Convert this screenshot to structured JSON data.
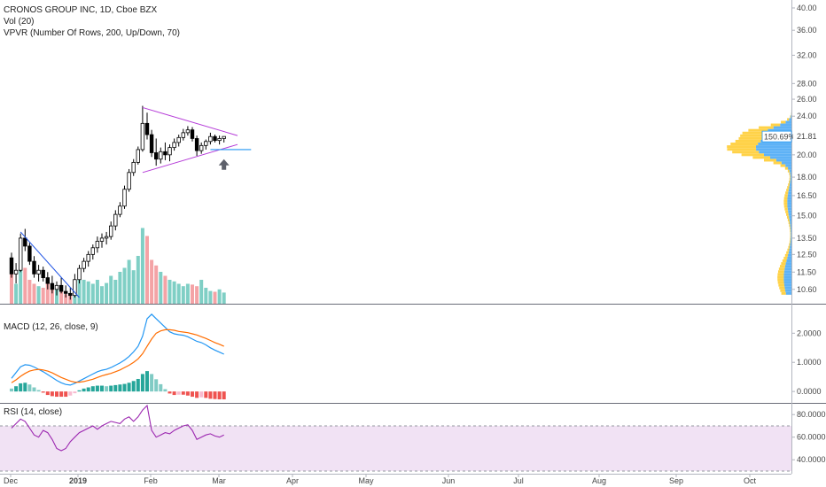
{
  "chart_data": [
    {
      "type": "candlestick",
      "title": "CRONOS GROUP INC, 1D, Cboe BZX",
      "indicators": [
        "Vol (20)",
        "VPVR (Number Of Rows, 200, Up/Down, 70)"
      ],
      "y_scale": "log",
      "ylim": [
        10.2,
        40.5
      ],
      "y_ticks": [
        "40.00",
        "36.00",
        "32.00",
        "28.00",
        "26.00",
        "24.00",
        "22.00",
        "20.00",
        "18.00",
        "16.50",
        "15.00",
        "13.50",
        "12.50",
        "11.50",
        "10.60"
      ],
      "x_ticks": [
        "Dec",
        "2019",
        "Feb",
        "Mar",
        "Apr",
        "May",
        "Jun",
        "Jul",
        "Aug",
        "Sep",
        "Oct"
      ],
      "candles": [
        {
          "o": 12.3,
          "h": 12.6,
          "l": 11.2,
          "c": 11.4
        },
        {
          "o": 11.4,
          "h": 12.0,
          "l": 10.9,
          "c": 11.6
        },
        {
          "o": 11.6,
          "h": 13.8,
          "l": 11.5,
          "c": 13.5
        },
        {
          "o": 13.5,
          "h": 14.1,
          "l": 12.7,
          "c": 13.0
        },
        {
          "o": 13.0,
          "h": 13.2,
          "l": 11.9,
          "c": 12.1
        },
        {
          "o": 12.1,
          "h": 12.4,
          "l": 11.2,
          "c": 11.4
        },
        {
          "o": 11.4,
          "h": 11.9,
          "l": 11.0,
          "c": 11.6
        },
        {
          "o": 11.6,
          "h": 11.8,
          "l": 11.0,
          "c": 11.2
        },
        {
          "o": 11.2,
          "h": 11.5,
          "l": 10.6,
          "c": 10.9
        },
        {
          "o": 10.9,
          "h": 11.3,
          "l": 10.4,
          "c": 10.6
        },
        {
          "o": 10.6,
          "h": 11.0,
          "l": 10.3,
          "c": 10.8
        },
        {
          "o": 10.8,
          "h": 11.2,
          "l": 10.4,
          "c": 10.5
        },
        {
          "o": 10.5,
          "h": 10.8,
          "l": 10.2,
          "c": 10.4
        },
        {
          "o": 10.4,
          "h": 10.7,
          "l": 10.1,
          "c": 10.3
        },
        {
          "o": 10.3,
          "h": 11.4,
          "l": 10.2,
          "c": 11.1
        },
        {
          "o": 11.1,
          "h": 11.9,
          "l": 10.9,
          "c": 11.7
        },
        {
          "o": 11.7,
          "h": 12.3,
          "l": 11.5,
          "c": 12.1
        },
        {
          "o": 12.1,
          "h": 12.7,
          "l": 11.8,
          "c": 12.5
        },
        {
          "o": 12.5,
          "h": 13.1,
          "l": 12.2,
          "c": 12.9
        },
        {
          "o": 12.9,
          "h": 13.6,
          "l": 12.6,
          "c": 13.3
        },
        {
          "o": 13.3,
          "h": 13.8,
          "l": 12.9,
          "c": 13.5
        },
        {
          "o": 13.5,
          "h": 13.9,
          "l": 13.1,
          "c": 13.6
        },
        {
          "o": 13.6,
          "h": 14.6,
          "l": 13.4,
          "c": 14.3
        },
        {
          "o": 14.3,
          "h": 15.4,
          "l": 14.0,
          "c": 15.1
        },
        {
          "o": 15.1,
          "h": 16.0,
          "l": 14.9,
          "c": 15.7
        },
        {
          "o": 15.7,
          "h": 17.3,
          "l": 15.5,
          "c": 17.0
        },
        {
          "o": 17.0,
          "h": 18.7,
          "l": 16.8,
          "c": 18.4
        },
        {
          "o": 18.4,
          "h": 19.6,
          "l": 18.1,
          "c": 19.3
        },
        {
          "o": 19.3,
          "h": 20.8,
          "l": 19.1,
          "c": 20.5
        },
        {
          "o": 20.5,
          "h": 25.2,
          "l": 20.3,
          "c": 23.2
        },
        {
          "o": 23.2,
          "h": 24.4,
          "l": 21.5,
          "c": 22.0
        },
        {
          "o": 22.0,
          "h": 22.5,
          "l": 19.8,
          "c": 20.2
        },
        {
          "o": 20.2,
          "h": 21.6,
          "l": 19.0,
          "c": 19.6
        },
        {
          "o": 19.6,
          "h": 20.7,
          "l": 19.2,
          "c": 20.3
        },
        {
          "o": 20.3,
          "h": 21.2,
          "l": 19.5,
          "c": 20.0
        },
        {
          "o": 20.0,
          "h": 21.0,
          "l": 19.4,
          "c": 20.7
        },
        {
          "o": 20.7,
          "h": 21.6,
          "l": 20.4,
          "c": 21.2
        },
        {
          "o": 21.2,
          "h": 22.0,
          "l": 20.8,
          "c": 21.7
        },
        {
          "o": 21.7,
          "h": 22.6,
          "l": 21.4,
          "c": 22.2
        },
        {
          "o": 22.2,
          "h": 22.9,
          "l": 21.9,
          "c": 22.5
        },
        {
          "o": 22.5,
          "h": 22.8,
          "l": 21.3,
          "c": 21.6
        },
        {
          "o": 21.6,
          "h": 21.9,
          "l": 19.9,
          "c": 20.4
        },
        {
          "o": 20.4,
          "h": 21.2,
          "l": 20.1,
          "c": 20.9
        },
        {
          "o": 20.9,
          "h": 21.5,
          "l": 20.5,
          "c": 21.3
        },
        {
          "o": 21.3,
          "h": 22.2,
          "l": 21.0,
          "c": 21.8
        },
        {
          "o": 21.8,
          "h": 22.0,
          "l": 21.2,
          "c": 21.4
        },
        {
          "o": 21.4,
          "h": 21.9,
          "l": 21.0,
          "c": 21.6
        },
        {
          "o": 21.6,
          "h": 21.8,
          "l": 21.2,
          "c": 21.81
        }
      ],
      "last_price": "21.81",
      "vpvr_label": "150.69%",
      "volume_ratios": [
        0.4,
        0.25,
        0.55,
        0.45,
        0.3,
        0.25,
        0.22,
        0.2,
        0.28,
        0.22,
        0.18,
        0.15,
        0.12,
        0.1,
        0.25,
        0.35,
        0.3,
        0.28,
        0.25,
        0.3,
        0.22,
        0.26,
        0.35,
        0.3,
        0.4,
        0.45,
        0.55,
        0.42,
        0.6,
        0.95,
        0.85,
        0.55,
        0.48,
        0.4,
        0.35,
        0.3,
        0.28,
        0.25,
        0.22,
        0.25,
        0.24,
        0.22,
        0.3,
        0.2,
        0.16,
        0.15,
        0.18,
        0.14
      ]
    },
    {
      "type": "line",
      "title": "MACD (12, 26, close, 9)",
      "ylim": [
        -0.3,
        2.8
      ],
      "y_ticks": [
        "2.0000",
        "1.0000",
        "0.0000"
      ],
      "series": [
        {
          "color": "#2196f3",
          "values": [
            0.45,
            0.65,
            0.85,
            0.92,
            0.9,
            0.84,
            0.76,
            0.68,
            0.58,
            0.48,
            0.38,
            0.3,
            0.24,
            0.22,
            0.28,
            0.36,
            0.44,
            0.52,
            0.6,
            0.68,
            0.73,
            0.76,
            0.82,
            0.9,
            0.98,
            1.08,
            1.2,
            1.36,
            1.55,
            1.9,
            2.5,
            2.65,
            2.5,
            2.35,
            2.2,
            2.05,
            1.98,
            1.95,
            1.93,
            1.88,
            1.8,
            1.72,
            1.68,
            1.6,
            1.5,
            1.42,
            1.35,
            1.28
          ]
        },
        {
          "color": "#ff6d00",
          "values": [
            0.3,
            0.4,
            0.52,
            0.62,
            0.7,
            0.74,
            0.76,
            0.74,
            0.7,
            0.64,
            0.56,
            0.48,
            0.42,
            0.36,
            0.32,
            0.32,
            0.34,
            0.38,
            0.42,
            0.48,
            0.54,
            0.58,
            0.62,
            0.68,
            0.74,
            0.82,
            0.9,
            1.0,
            1.12,
            1.3,
            1.55,
            1.8,
            2.0,
            2.08,
            2.12,
            2.12,
            2.1,
            2.06,
            2.04,
            2.02,
            1.98,
            1.94,
            1.88,
            1.82,
            1.75,
            1.68,
            1.62,
            1.55
          ]
        }
      ],
      "histogram": [
        0.1,
        0.18,
        0.28,
        0.3,
        0.24,
        0.14,
        0.05,
        -0.04,
        -0.12,
        -0.16,
        -0.18,
        -0.18,
        -0.18,
        -0.14,
        -0.06,
        0.04,
        0.1,
        0.14,
        0.18,
        0.2,
        0.2,
        0.18,
        0.2,
        0.22,
        0.24,
        0.26,
        0.3,
        0.36,
        0.43,
        0.6,
        0.7,
        0.6,
        0.42,
        0.25,
        0.08,
        -0.07,
        -0.12,
        -0.11,
        -0.11,
        -0.14,
        -0.18,
        -0.22,
        -0.2,
        -0.22,
        -0.25,
        -0.26,
        -0.27,
        -0.27
      ]
    },
    {
      "type": "line",
      "title": "RSI (14, close)",
      "ylim": [
        30,
        88
      ],
      "y_ticks": [
        "80.0000",
        "60.0000",
        "40.0000"
      ],
      "band": [
        30,
        70
      ],
      "series": [
        {
          "color": "#9c27b0",
          "values": [
            68,
            72,
            76,
            74,
            68,
            62,
            60,
            66,
            64,
            58,
            50,
            48,
            50,
            56,
            60,
            64,
            66,
            68,
            70,
            67,
            70,
            72,
            74,
            73,
            72,
            76,
            78,
            74,
            78,
            84,
            88,
            66,
            60,
            62,
            64,
            63,
            66,
            68,
            70,
            71,
            66,
            58,
            60,
            62,
            63,
            61,
            60,
            62
          ]
        }
      ]
    }
  ]
}
